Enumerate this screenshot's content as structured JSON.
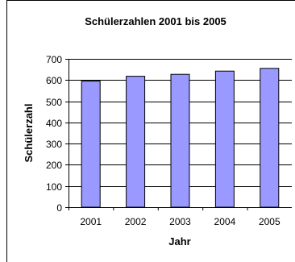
{
  "chart_data": {
    "type": "bar",
    "title": "Schülerzahlen 2001 bis 2005",
    "xlabel": "Jahr",
    "ylabel": "Schülerzahl",
    "categories": [
      "2001",
      "2002",
      "2003",
      "2004",
      "2005"
    ],
    "values": [
      595,
      618,
      627,
      642,
      655
    ],
    "ylim": [
      0,
      700
    ],
    "yticks": [
      "0",
      "100",
      "200",
      "300",
      "400",
      "500",
      "600",
      "700"
    ],
    "grid": true,
    "legend": "none",
    "colors": {
      "bar": "#9999ff",
      "bar_stroke": "#000000",
      "grid": "#000000"
    }
  }
}
